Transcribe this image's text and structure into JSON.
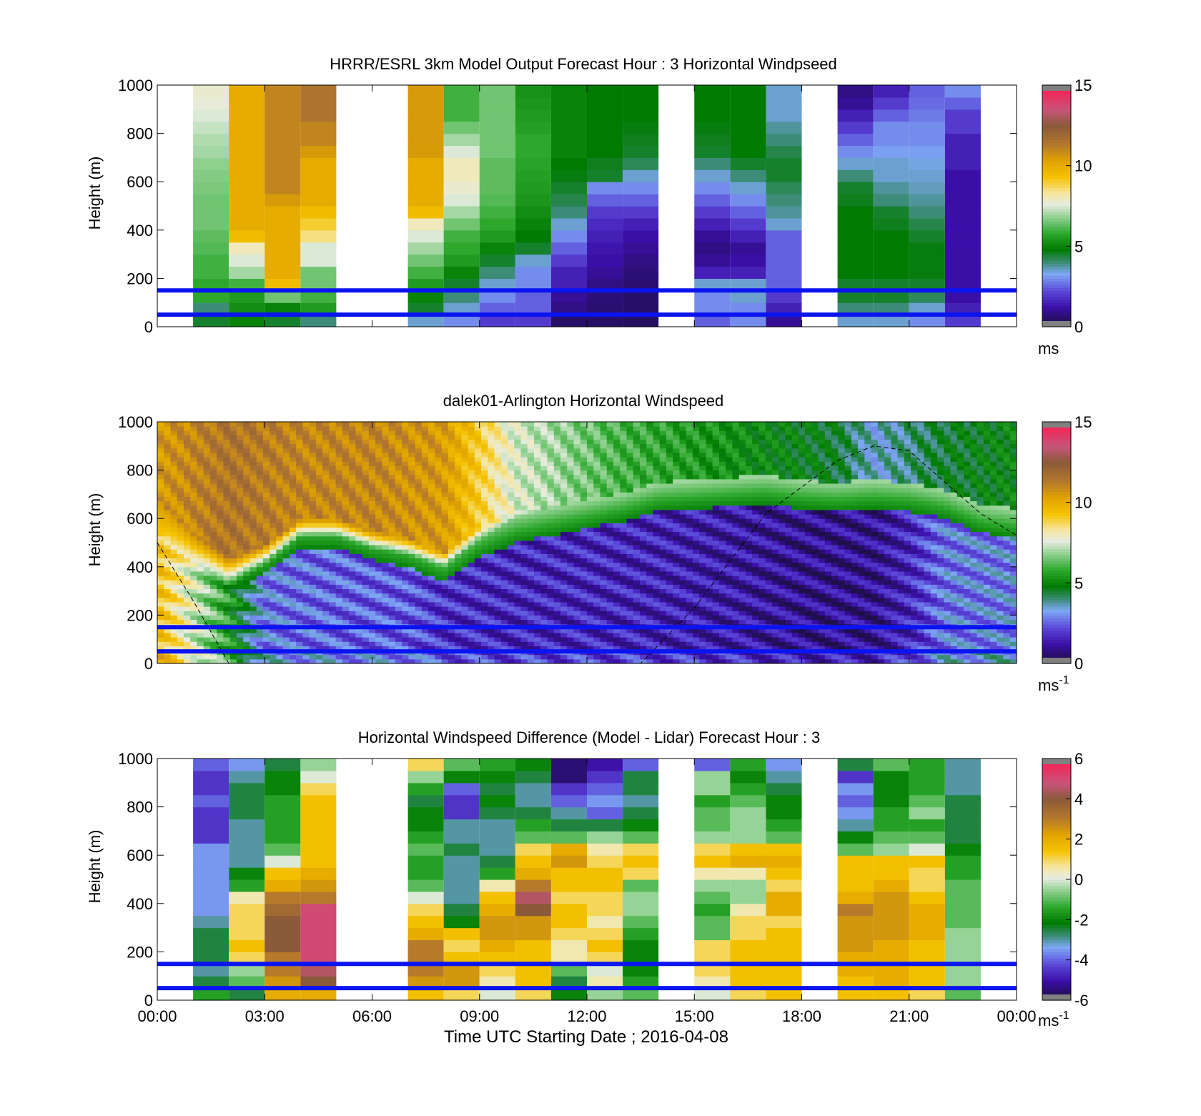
{
  "figure": {
    "xlabel": "Time UTC  Starting Date ; 2016-04-08",
    "xticks": [
      "00:00",
      "03:00",
      "06:00",
      "09:00",
      "12:00",
      "15:00",
      "18:00",
      "21:00",
      "00:00"
    ]
  },
  "chart_data": [
    {
      "type": "heatmap",
      "title": "HRRR/ESRL 3km Model Output   Forecast Hour : 3 Horizontal Windpseed",
      "xlabel": "",
      "ylabel": "Height (m)",
      "ylim": [
        0,
        1000
      ],
      "yticks": [
        "0",
        "200",
        "400",
        "600",
        "800",
        "1000"
      ],
      "x_hours": [
        1.0,
        2.0,
        3.0,
        4.0,
        7.0,
        8.0,
        9.0,
        10.0,
        11.0,
        12.0,
        13.0,
        15.0,
        16.0,
        17.0,
        19.0,
        20.0,
        21.0,
        22.0
      ],
      "y_levels_m": [
        25,
        75,
        125,
        175,
        225,
        275,
        325,
        375,
        425,
        475,
        525,
        575,
        625,
        675,
        725,
        775,
        825,
        875,
        925,
        975
      ],
      "values_ms": [
        [
          4.5,
          4.0,
          5.8,
          5.8,
          6.0,
          6.0,
          6.2,
          6.3,
          6.5,
          6.5,
          6.5,
          6.6,
          6.7,
          6.8,
          7.0,
          7.1,
          7.3,
          7.5,
          7.7,
          7.8
        ],
        [
          5.0,
          5.2,
          5.5,
          6.0,
          7.0,
          7.5,
          8.0,
          9.5,
          10.0,
          10.0,
          10.0,
          10.0,
          10.0,
          10.0,
          10.0,
          10.0,
          10.0,
          10.0,
          10.0,
          10.0
        ],
        [
          4.5,
          5.0,
          6.5,
          9.5,
          10.0,
          10.0,
          10.0,
          10.0,
          10.0,
          10.0,
          10.5,
          11.0,
          11.0,
          11.0,
          11.0,
          11.0,
          11.0,
          11.0,
          11.0,
          11.0
        ],
        [
          4.0,
          5.5,
          6.0,
          6.5,
          6.5,
          7.5,
          7.5,
          8.5,
          9.0,
          9.5,
          10.0,
          10.0,
          10.0,
          10.0,
          10.5,
          11.0,
          11.0,
          11.5,
          11.5,
          11.5
        ],
        [
          3.5,
          4.5,
          5.0,
          5.5,
          6.0,
          6.5,
          7.0,
          7.5,
          8.0,
          9.5,
          10.0,
          10.0,
          10.0,
          10.0,
          10.5,
          10.5,
          10.5,
          10.5,
          10.5,
          10.5
        ],
        [
          3.0,
          3.5,
          4.0,
          4.5,
          5.0,
          5.5,
          5.8,
          6.0,
          6.5,
          7.0,
          7.5,
          7.8,
          8.0,
          8.0,
          7.5,
          7.0,
          6.5,
          6.0,
          6.0,
          6.0
        ],
        [
          2.0,
          2.5,
          3.0,
          3.5,
          4.0,
          4.5,
          5.0,
          5.5,
          5.8,
          6.0,
          6.2,
          6.3,
          6.3,
          6.3,
          6.5,
          6.5,
          6.5,
          6.5,
          6.5,
          6.5
        ],
        [
          2.0,
          2.5,
          2.5,
          3.0,
          3.0,
          3.5,
          4.5,
          4.8,
          5.0,
          5.2,
          5.4,
          5.5,
          5.6,
          5.7,
          5.8,
          5.8,
          5.6,
          5.5,
          5.4,
          5.3
        ],
        [
          0.5,
          0.8,
          1.0,
          1.5,
          1.5,
          2.0,
          2.5,
          3.0,
          3.5,
          4.0,
          4.3,
          4.5,
          4.7,
          4.8,
          5.0,
          5.0,
          5.0,
          5.0,
          5.0,
          5.0
        ],
        [
          0.5,
          0.6,
          0.7,
          0.8,
          1.0,
          1.2,
          1.3,
          1.5,
          1.7,
          2.0,
          2.5,
          3.0,
          4.5,
          4.6,
          4.8,
          4.8,
          4.8,
          4.8,
          4.8,
          4.8
        ],
        [
          0.4,
          0.5,
          0.5,
          0.6,
          0.7,
          0.8,
          1.0,
          1.2,
          1.5,
          2.0,
          2.5,
          3.0,
          3.5,
          4.2,
          4.5,
          4.6,
          4.7,
          4.8,
          4.8,
          4.8
        ],
        [
          2.5,
          3.0,
          3.0,
          3.5,
          1.5,
          1.0,
          0.8,
          1.0,
          1.5,
          2.0,
          2.5,
          3.0,
          3.5,
          4.0,
          4.5,
          4.6,
          4.7,
          4.8,
          4.8,
          4.8
        ],
        [
          3.0,
          3.0,
          3.5,
          3.5,
          1.5,
          1.2,
          1.0,
          1.5,
          2.0,
          2.5,
          3.0,
          3.5,
          4.0,
          4.5,
          4.8,
          4.8,
          4.8,
          4.8,
          4.8,
          4.8
        ],
        [
          1.0,
          1.5,
          2.0,
          2.5,
          2.5,
          2.5,
          2.5,
          2.5,
          3.5,
          3.8,
          4.0,
          4.2,
          4.5,
          4.5,
          4.3,
          4.0,
          3.8,
          3.5,
          3.5,
          3.5
        ],
        [
          3.5,
          4.0,
          4.5,
          4.5,
          4.8,
          4.8,
          4.8,
          4.8,
          4.8,
          4.8,
          4.6,
          4.5,
          4.0,
          3.5,
          3.0,
          2.5,
          2.0,
          1.5,
          1.0,
          0.8
        ],
        [
          3.5,
          4.0,
          4.5,
          4.5,
          4.8,
          4.8,
          4.8,
          4.8,
          4.6,
          4.5,
          4.0,
          3.8,
          3.5,
          3.5,
          3.2,
          3.0,
          3.0,
          2.5,
          2.0,
          1.5
        ],
        [
          3.0,
          3.5,
          4.2,
          4.5,
          4.7,
          4.7,
          4.7,
          4.5,
          4.3,
          4.0,
          3.8,
          3.6,
          3.5,
          3.4,
          3.2,
          3.0,
          3.0,
          2.8,
          2.6,
          2.5
        ],
        [
          2.0,
          1.5,
          1.2,
          1.2,
          1.2,
          1.2,
          1.2,
          1.2,
          1.2,
          1.2,
          1.2,
          1.2,
          1.2,
          1.5,
          1.5,
          1.5,
          2.0,
          2.0,
          2.5,
          3.0
        ]
      ],
      "reference_lines_m": [
        50,
        150
      ],
      "colorbar": {
        "ticks": [
          "0",
          "5",
          "10",
          "15"
        ],
        "min": 0,
        "max": 15,
        "unit": "ms",
        "unit_sup": ""
      }
    },
    {
      "type": "heatmap",
      "title": "dalek01-Arlington  Horizontal Windspeed",
      "xlabel": "",
      "ylabel": "Height (m)",
      "ylim": [
        0,
        1000
      ],
      "yticks": [
        "0",
        "200",
        "400",
        "600",
        "800",
        "1000"
      ],
      "wind_profile_structure": {
        "boundary_top_m_by_hour": [
          [
            0,
            620
          ],
          [
            1,
            480
          ],
          [
            2,
            380
          ],
          [
            3,
            430
          ],
          [
            4,
            540
          ],
          [
            5,
            540
          ],
          [
            6,
            490
          ],
          [
            7,
            460
          ],
          [
            8,
            400
          ],
          [
            9,
            500
          ],
          [
            10,
            560
          ],
          [
            11,
            590
          ],
          [
            12,
            620
          ],
          [
            13,
            650
          ],
          [
            14,
            690
          ],
          [
            15,
            700
          ],
          [
            16,
            710
          ],
          [
            17,
            720
          ],
          [
            18,
            700
          ],
          [
            19,
            690
          ],
          [
            20,
            700
          ],
          [
            21,
            690
          ],
          [
            22,
            660
          ],
          [
            23,
            600
          ],
          [
            24,
            580
          ]
        ],
        "upper_layer_ms_by_hour": [
          [
            0,
            10.5
          ],
          [
            2,
            11.5
          ],
          [
            4,
            11.0
          ],
          [
            6,
            11.0
          ],
          [
            8,
            10.5
          ],
          [
            9,
            9.0
          ],
          [
            10,
            7.5
          ],
          [
            11,
            7.0
          ],
          [
            12,
            6.5
          ],
          [
            13,
            6.0
          ],
          [
            15,
            5.5
          ],
          [
            17,
            5.0
          ],
          [
            19,
            4.5
          ],
          [
            20,
            3.5
          ],
          [
            21,
            4.0
          ],
          [
            22,
            4.5
          ],
          [
            24,
            5.0
          ]
        ],
        "lower_layer_ms_by_hour": [
          [
            0,
            9.5
          ],
          [
            1,
            7.5
          ],
          [
            2,
            5.5
          ],
          [
            3,
            2.8
          ],
          [
            5,
            2.5
          ],
          [
            7,
            2.4
          ],
          [
            8,
            1.8
          ],
          [
            10,
            1.6
          ],
          [
            12,
            1.6
          ],
          [
            14,
            1.5
          ],
          [
            16,
            1.3
          ],
          [
            18,
            1.0
          ],
          [
            20,
            1.0
          ],
          [
            21,
            1.6
          ],
          [
            22,
            2.8
          ],
          [
            24,
            3.0
          ]
        ]
      },
      "dashed_curve": {
        "description_points_hour_m": [
          [
            0,
            500
          ],
          [
            1,
            260
          ],
          [
            2,
            0
          ],
          [
            13.5,
            0
          ],
          [
            15,
            230
          ],
          [
            17,
            620
          ],
          [
            19,
            840
          ],
          [
            20,
            900
          ],
          [
            21,
            880
          ],
          [
            23,
            620
          ],
          [
            24,
            530
          ]
        ]
      },
      "reference_lines_m": [
        50,
        150
      ],
      "colorbar": {
        "ticks": [
          "0",
          "5",
          "10",
          "15"
        ],
        "min": 0,
        "max": 15,
        "unit": "ms",
        "unit_sup": "-1"
      }
    },
    {
      "type": "heatmap",
      "title": "Horizontal Windspeed Difference (Model - Lidar) Forecast Hour : 3",
      "xlabel": "Time UTC  Starting Date ; 2016-04-08",
      "ylabel": "Height (m)",
      "ylim": [
        0,
        1000
      ],
      "yticks": [
        "0",
        "200",
        "400",
        "600",
        "800",
        "1000"
      ],
      "x_hours": [
        1.0,
        2.0,
        3.0,
        4.0,
        7.0,
        8.0,
        9.0,
        10.0,
        11.0,
        12.0,
        13.0,
        15.0,
        16.0,
        17.0,
        19.0,
        20.0,
        21.0,
        22.0
      ],
      "y_levels_m": [
        25,
        75,
        125,
        175,
        225,
        275,
        325,
        375,
        425,
        475,
        525,
        575,
        625,
        675,
        725,
        775,
        825,
        875,
        925,
        975
      ],
      "values_ms": [
        [
          -1.5,
          -2.5,
          -3.0,
          -2.5,
          -2.5,
          -2.5,
          -3.0,
          -3.5,
          -3.5,
          -3.5,
          -3.5,
          -3.5,
          -3.5,
          -4.5,
          -4.5,
          -4.5,
          -4.0,
          -4.5,
          -4.5,
          -4.0
        ],
        [
          -2.5,
          -1.0,
          -0.5,
          1.0,
          1.5,
          1.0,
          1.0,
          1.0,
          0.5,
          -1.5,
          -2.0,
          -3.0,
          -3.0,
          -3.0,
          -3.0,
          -2.5,
          -2.5,
          -2.5,
          -3.0,
          -3.5
        ],
        [
          2.0,
          2.5,
          3.0,
          3.0,
          4.0,
          4.0,
          4.0,
          3.5,
          3.0,
          2.0,
          1.5,
          0.0,
          -1.0,
          -1.5,
          -1.5,
          -1.5,
          -1.5,
          -2.0,
          -2.0,
          -2.5
        ],
        [
          2.0,
          4.0,
          4.5,
          5.0,
          5.0,
          5.0,
          5.0,
          5.0,
          3.0,
          2.5,
          2.0,
          1.5,
          1.5,
          1.5,
          1.5,
          1.5,
          1.5,
          1.0,
          0.0,
          -0.5
        ],
        [
          1.5,
          2.5,
          3.0,
          3.0,
          3.0,
          2.0,
          1.5,
          1.0,
          0.0,
          -1.0,
          -1.5,
          -1.5,
          -1.0,
          -1.5,
          -2.0,
          -2.0,
          -2.5,
          -1.5,
          -0.5,
          1.0
        ],
        [
          1.0,
          2.5,
          2.5,
          1.5,
          1.0,
          1.5,
          -2.0,
          -2.5,
          -3.0,
          -3.0,
          -3.0,
          -3.0,
          -2.5,
          -3.0,
          -3.0,
          -4.5,
          -4.5,
          -4.0,
          -2.0,
          -1.0
        ],
        [
          0.0,
          0.5,
          1.0,
          1.5,
          2.0,
          2.5,
          2.5,
          2.0,
          1.5,
          0.5,
          -1.5,
          -2.5,
          -3.0,
          -3.0,
          -3.0,
          -2.5,
          -2.0,
          -2.5,
          -2.0,
          -1.5
        ],
        [
          1.0,
          1.5,
          1.5,
          1.5,
          1.5,
          2.5,
          2.5,
          4.0,
          4.5,
          3.0,
          2.0,
          1.5,
          1.0,
          -1.0,
          -1.5,
          -2.5,
          -3.0,
          -3.0,
          -2.5,
          -2.0
        ],
        [
          -2.0,
          -2.5,
          -1.0,
          0.5,
          0.5,
          1.0,
          1.5,
          1.5,
          1.0,
          1.5,
          1.5,
          2.5,
          2.0,
          -1.0,
          -2.5,
          -3.0,
          -4.0,
          -4.5,
          -5.5,
          -5.5
        ],
        [
          -0.5,
          0.5,
          0.0,
          1.0,
          1.5,
          1.0,
          0.5,
          1.0,
          1.0,
          1.5,
          1.5,
          1.0,
          0.5,
          -0.5,
          -2.5,
          -4.0,
          -3.5,
          -4.0,
          -4.5,
          -5.0
        ],
        [
          -1.0,
          -1.5,
          -2.0,
          -2.0,
          -2.0,
          -1.5,
          -1.0,
          -0.5,
          -0.5,
          -1.0,
          1.0,
          1.5,
          1.0,
          -1.0,
          -2.0,
          -2.5,
          -3.0,
          -2.5,
          -2.5,
          -4.0
        ],
        [
          0.0,
          0.5,
          1.0,
          1.0,
          1.0,
          -1.0,
          -1.0,
          -1.5,
          -1.0,
          -0.5,
          0.5,
          1.5,
          1.0,
          -0.5,
          -1.0,
          -1.0,
          -1.5,
          -0.5,
          -0.5,
          -4.0
        ],
        [
          1.0,
          1.5,
          1.5,
          1.5,
          1.5,
          1.0,
          1.0,
          0.5,
          -0.5,
          -0.5,
          0.5,
          2.0,
          1.5,
          -0.5,
          -0.5,
          -0.5,
          -1.0,
          -1.5,
          -2.0,
          -1.5
        ],
        [
          1.5,
          1.5,
          1.5,
          1.5,
          1.5,
          1.5,
          1.0,
          2.0,
          2.0,
          1.0,
          1.5,
          2.0,
          1.5,
          -1.0,
          -1.5,
          -2.0,
          -2.0,
          -2.5,
          -3.0,
          -3.5
        ],
        [
          1.5,
          1.5,
          2.0,
          2.0,
          2.5,
          2.5,
          2.5,
          3.0,
          2.0,
          1.5,
          1.5,
          1.5,
          -1.0,
          -2.0,
          -3.0,
          -3.5,
          -4.0,
          -3.5,
          -4.5,
          -2.5
        ],
        [
          1.5,
          2.0,
          2.0,
          2.0,
          2.0,
          2.5,
          2.5,
          2.5,
          2.5,
          2.0,
          1.5,
          1.5,
          -0.5,
          -1.0,
          -1.5,
          -1.5,
          -2.0,
          -2.0,
          -2.0,
          -1.0
        ],
        [
          1.0,
          1.5,
          1.5,
          1.5,
          1.5,
          2.0,
          2.0,
          2.0,
          1.5,
          1.0,
          1.0,
          1.5,
          0.0,
          -1.0,
          -1.5,
          -0.5,
          -1.0,
          -1.5,
          -1.5,
          -1.5
        ],
        [
          -1.0,
          -0.5,
          -0.5,
          -0.5,
          -0.5,
          -0.5,
          -1.0,
          -1.0,
          -1.0,
          -1.0,
          -1.5,
          -1.5,
          -2.0,
          -2.5,
          -2.5,
          -2.5,
          -2.5,
          -3.0,
          -3.0,
          -3.0
        ]
      ],
      "reference_lines_m": [
        50,
        150
      ],
      "colorbar": {
        "ticks": [
          "-6",
          "-4",
          "-2",
          "0",
          "2",
          "4",
          "6"
        ],
        "min": -6,
        "max": 6,
        "unit": "ms",
        "unit_sup": "-1"
      }
    }
  ],
  "colors": {
    "reference_line": "#0a14f0",
    "speed_colormap": [
      "#808080",
      "#1a0f3a",
      "#3a0fa8",
      "#5a46d8",
      "#7ea8f4",
      "#3c8c78",
      "#007a00",
      "#2da82d",
      "#8ed08e",
      "#e6ece0",
      "#f5e6a0",
      "#f5c200",
      "#e0a400",
      "#b4782d",
      "#8a5a3a",
      "#c8547a",
      "#f0285a",
      "#808080"
    ]
  }
}
